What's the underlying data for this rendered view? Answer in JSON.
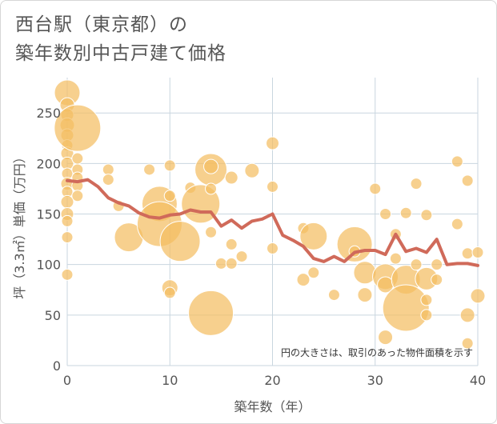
{
  "title": {
    "line1": "西台駅（東京都）の",
    "line2": "築年数別中古戸建て価格"
  },
  "colors": {
    "bubble_fill": "#f4be62",
    "bubble_stroke": "#ffffff",
    "line": "#d06a5a",
    "grid": "#c9d6df",
    "plot_bg": "#ffffff"
  },
  "chart_data": {
    "type": "scatter",
    "xlabel": "築年数（年）",
    "ylabel": "坪（3.3㎡）単価（万円）",
    "xlim": [
      0,
      40
    ],
    "ylim": [
      0,
      285
    ],
    "x_ticks": [
      0,
      10,
      20,
      30,
      40
    ],
    "y_ticks": [
      0,
      50,
      100,
      150,
      200,
      250
    ],
    "grid": true,
    "note": "円の大きさは、取引のあった物件面積を示す",
    "series": [
      {
        "kind": "bubble",
        "points": [
          {
            "x": 0,
            "y": 270,
            "r": 16
          },
          {
            "x": 0,
            "y": 258,
            "r": 9
          },
          {
            "x": 0,
            "y": 248,
            "r": 8
          },
          {
            "x": 0,
            "y": 238,
            "r": 9
          },
          {
            "x": 0,
            "y": 228,
            "r": 8
          },
          {
            "x": 0,
            "y": 218,
            "r": 7
          },
          {
            "x": 0,
            "y": 210,
            "r": 8
          },
          {
            "x": 0,
            "y": 200,
            "r": 8
          },
          {
            "x": 0,
            "y": 190,
            "r": 7
          },
          {
            "x": 0,
            "y": 180,
            "r": 8
          },
          {
            "x": 0,
            "y": 172,
            "r": 7
          },
          {
            "x": 0,
            "y": 162,
            "r": 8
          },
          {
            "x": 0,
            "y": 150,
            "r": 8
          },
          {
            "x": 0,
            "y": 143,
            "r": 7
          },
          {
            "x": 0,
            "y": 127,
            "r": 7
          },
          {
            "x": 0,
            "y": 90,
            "r": 7
          },
          {
            "x": 1,
            "y": 235,
            "r": 29
          },
          {
            "x": 1,
            "y": 205,
            "r": 7
          },
          {
            "x": 1,
            "y": 194,
            "r": 7
          },
          {
            "x": 1,
            "y": 186,
            "r": 7
          },
          {
            "x": 1,
            "y": 178,
            "r": 7
          },
          {
            "x": 1,
            "y": 168,
            "r": 7
          },
          {
            "x": 4,
            "y": 194,
            "r": 7
          },
          {
            "x": 4,
            "y": 184,
            "r": 7
          },
          {
            "x": 5,
            "y": 158,
            "r": 7
          },
          {
            "x": 6,
            "y": 127,
            "r": 18
          },
          {
            "x": 8,
            "y": 194,
            "r": 7
          },
          {
            "x": 9,
            "y": 160,
            "r": 22
          },
          {
            "x": 9,
            "y": 140,
            "r": 28
          },
          {
            "x": 10,
            "y": 198,
            "r": 7
          },
          {
            "x": 10,
            "y": 168,
            "r": 7
          },
          {
            "x": 10,
            "y": 77,
            "r": 10
          },
          {
            "x": 10,
            "y": 72,
            "r": 7
          },
          {
            "x": 11,
            "y": 123,
            "r": 25
          },
          {
            "x": 12,
            "y": 176,
            "r": 7
          },
          {
            "x": 13,
            "y": 160,
            "r": 24
          },
          {
            "x": 14,
            "y": 194,
            "r": 20
          },
          {
            "x": 14,
            "y": 197,
            "r": 9
          },
          {
            "x": 14,
            "y": 175,
            "r": 7
          },
          {
            "x": 14,
            "y": 132,
            "r": 7
          },
          {
            "x": 14,
            "y": 52,
            "r": 28
          },
          {
            "x": 15,
            "y": 101,
            "r": 7
          },
          {
            "x": 16,
            "y": 186,
            "r": 8
          },
          {
            "x": 16,
            "y": 120,
            "r": 7
          },
          {
            "x": 16,
            "y": 101,
            "r": 7
          },
          {
            "x": 17,
            "y": 108,
            "r": 7
          },
          {
            "x": 18,
            "y": 193,
            "r": 9
          },
          {
            "x": 20,
            "y": 220,
            "r": 8
          },
          {
            "x": 20,
            "y": 177,
            "r": 7
          },
          {
            "x": 20,
            "y": 116,
            "r": 7
          },
          {
            "x": 23,
            "y": 136,
            "r": 7
          },
          {
            "x": 23,
            "y": 85,
            "r": 8
          },
          {
            "x": 24,
            "y": 92,
            "r": 7
          },
          {
            "x": 24,
            "y": 128,
            "r": 17
          },
          {
            "x": 26,
            "y": 70,
            "r": 7
          },
          {
            "x": 28,
            "y": 120,
            "r": 22
          },
          {
            "x": 28,
            "y": 113,
            "r": 7
          },
          {
            "x": 29,
            "y": 92,
            "r": 14
          },
          {
            "x": 29,
            "y": 70,
            "r": 9
          },
          {
            "x": 30,
            "y": 175,
            "r": 7
          },
          {
            "x": 31,
            "y": 150,
            "r": 7
          },
          {
            "x": 31,
            "y": 88,
            "r": 16
          },
          {
            "x": 31,
            "y": 80,
            "r": 10
          },
          {
            "x": 31,
            "y": 28,
            "r": 9
          },
          {
            "x": 32,
            "y": 130,
            "r": 7
          },
          {
            "x": 32,
            "y": 106,
            "r": 7
          },
          {
            "x": 33,
            "y": 151,
            "r": 7
          },
          {
            "x": 33,
            "y": 85,
            "r": 18
          },
          {
            "x": 33,
            "y": 57,
            "r": 29
          },
          {
            "x": 34,
            "y": 180,
            "r": 7
          },
          {
            "x": 34,
            "y": 100,
            "r": 7
          },
          {
            "x": 35,
            "y": 149,
            "r": 7
          },
          {
            "x": 35,
            "y": 86,
            "r": 14
          },
          {
            "x": 35,
            "y": 65,
            "r": 7
          },
          {
            "x": 35,
            "y": 50,
            "r": 7
          },
          {
            "x": 36,
            "y": 100,
            "r": 7
          },
          {
            "x": 36,
            "y": 85,
            "r": 7
          },
          {
            "x": 38,
            "y": 202,
            "r": 7
          },
          {
            "x": 38,
            "y": 140,
            "r": 7
          },
          {
            "x": 39,
            "y": 183,
            "r": 7
          },
          {
            "x": 39,
            "y": 111,
            "r": 7
          },
          {
            "x": 39,
            "y": 50,
            "r": 9
          },
          {
            "x": 39,
            "y": 22,
            "r": 7
          },
          {
            "x": 40,
            "y": 112,
            "r": 7
          },
          {
            "x": 40,
            "y": 69,
            "r": 9
          }
        ]
      },
      {
        "kind": "line",
        "x": [
          0,
          1,
          2,
          3,
          4,
          5,
          6,
          7,
          8,
          9,
          10,
          11,
          12,
          13,
          14,
          15,
          16,
          17,
          18,
          19,
          20,
          21,
          22,
          23,
          24,
          25,
          26,
          27,
          28,
          29,
          30,
          31,
          32,
          33,
          34,
          35,
          36,
          37,
          38,
          39,
          40
        ],
        "y": [
          183,
          182,
          184,
          177,
          166,
          161,
          158,
          151,
          147,
          146,
          149,
          150,
          154,
          152,
          152,
          138,
          144,
          136,
          143,
          145,
          150,
          129,
          124,
          118,
          106,
          103,
          108,
          103,
          112,
          114,
          114,
          110,
          130,
          113,
          116,
          112,
          125,
          100,
          101,
          101,
          99
        ]
      }
    ]
  }
}
